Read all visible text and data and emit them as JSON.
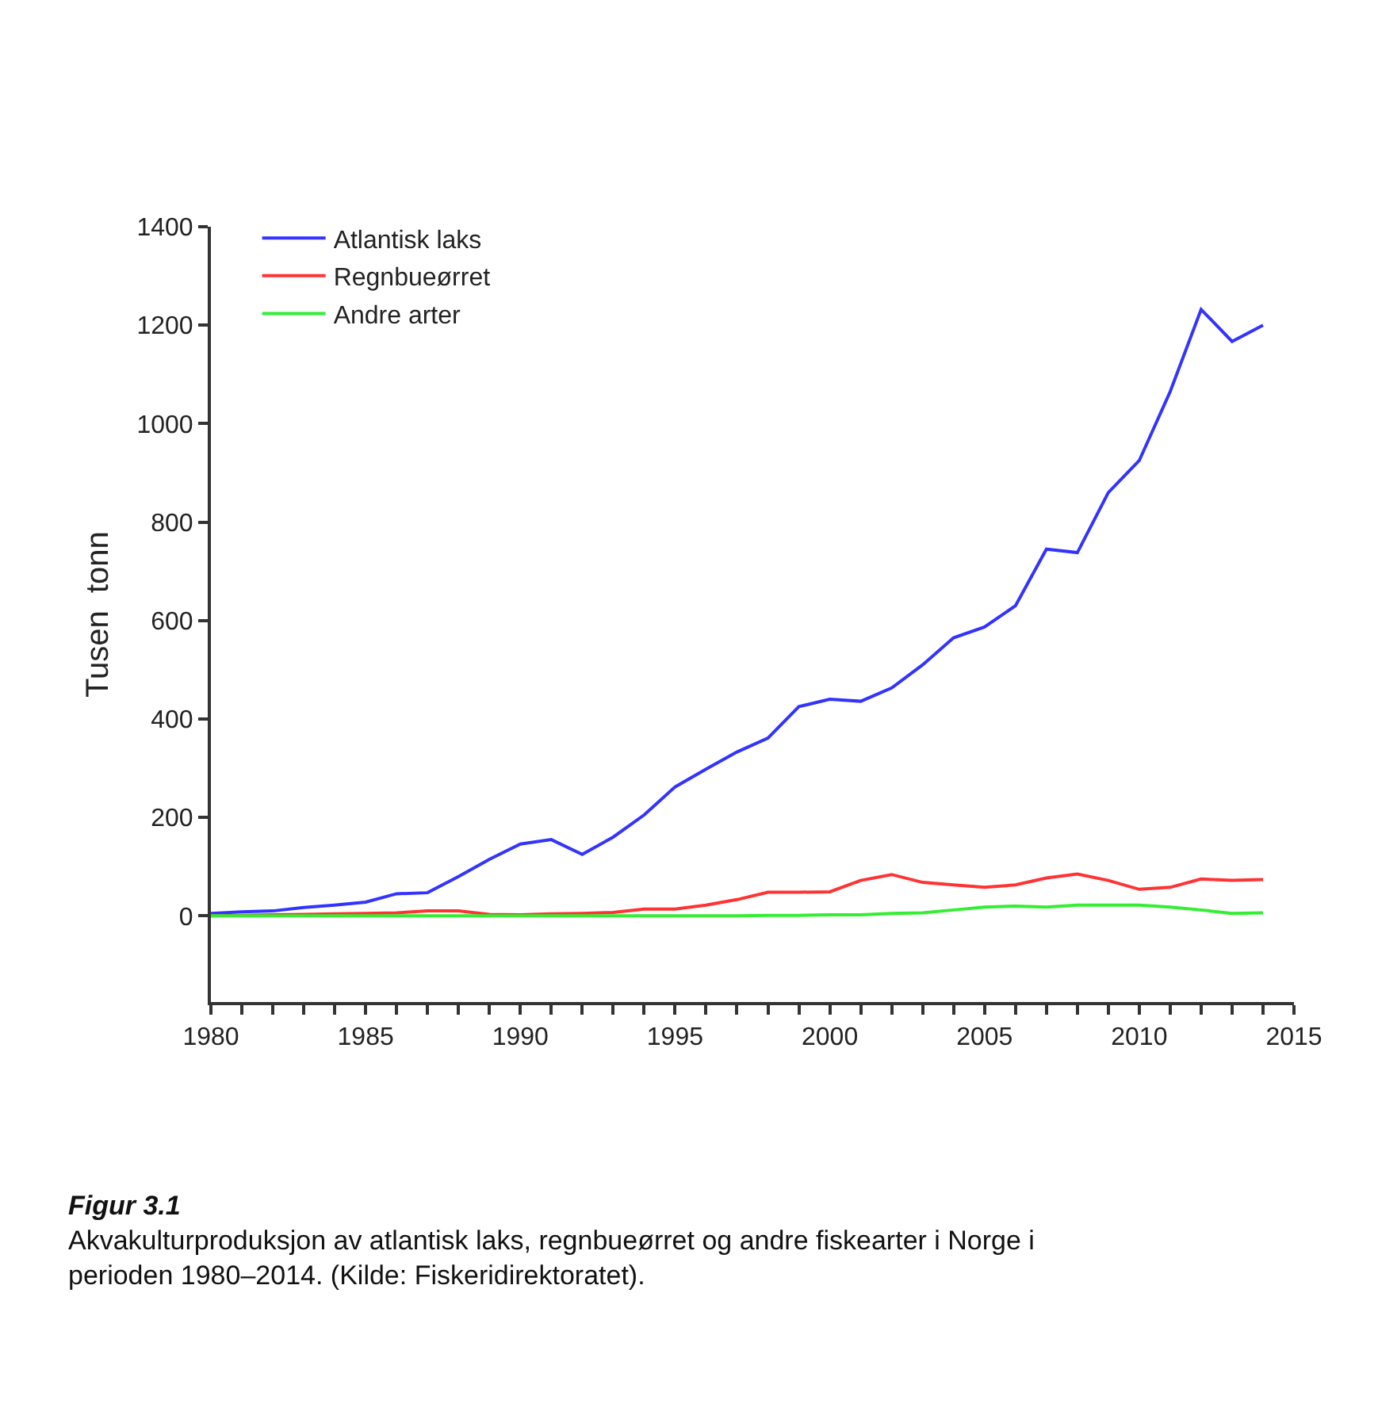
{
  "chart_data": {
    "type": "line",
    "ylabel": "Tusen  tonn",
    "x": [
      1980,
      1981,
      1982,
      1983,
      1984,
      1985,
      1986,
      1987,
      1988,
      1989,
      1990,
      1991,
      1992,
      1993,
      1994,
      1995,
      1996,
      1997,
      1998,
      1999,
      2000,
      2001,
      2002,
      2003,
      2004,
      2005,
      2006,
      2007,
      2008,
      2009,
      2010,
      2011,
      2012,
      2013,
      2014
    ],
    "series": [
      {
        "name": "Atlantisk laks",
        "color": "#3333ff",
        "values": [
          5,
          8,
          10,
          17,
          22,
          28,
          45,
          47,
          80,
          115,
          146,
          155,
          125,
          160,
          205,
          262,
          298,
          333,
          361,
          425,
          440,
          436,
          463,
          510,
          565,
          587,
          630,
          745,
          738,
          860,
          925,
          1065,
          1232,
          1167,
          1200
        ]
      },
      {
        "name": "Regnbueørret",
        "color": "#ff3333",
        "values": [
          0,
          1,
          2,
          3,
          4,
          5,
          6,
          10,
          10,
          3,
          2,
          4,
          5,
          7,
          14,
          14,
          22,
          33,
          48,
          48,
          49,
          72,
          84,
          68,
          63,
          58,
          63,
          77,
          85,
          72,
          54,
          58,
          75,
          72,
          74
        ]
      },
      {
        "name": "Andre arter",
        "color": "#33ee33",
        "values": [
          0,
          0,
          0,
          0,
          0,
          0,
          0,
          0,
          0,
          0,
          0,
          0,
          0,
          0,
          0,
          0,
          0,
          0,
          1,
          1,
          2,
          2,
          5,
          6,
          12,
          18,
          20,
          18,
          22,
          22,
          22,
          18,
          12,
          5,
          6
        ]
      }
    ],
    "xlim": [
      1980,
      2015
    ],
    "xticks": [
      1980,
      {
        "value": 1981,
        "label": null
      },
      {
        "value": 1982,
        "label": null
      },
      {
        "value": 1983,
        "label": null
      },
      {
        "value": 1984,
        "label": null
      },
      1985,
      {
        "value": 1986,
        "label": null
      },
      {
        "value": 1987,
        "label": null
      },
      {
        "value": 1988,
        "label": null
      },
      {
        "value": 1989,
        "label": null
      },
      1990,
      {
        "value": 1991,
        "label": null
      },
      {
        "value": 1992,
        "label": null
      },
      {
        "value": 1993,
        "label": null
      },
      {
        "value": 1994,
        "label": null
      },
      1995,
      {
        "value": 1996,
        "label": null
      },
      {
        "value": 1997,
        "label": null
      },
      {
        "value": 1998,
        "label": null
      },
      {
        "value": 1999,
        "label": null
      },
      2000,
      {
        "value": 2001,
        "label": null
      },
      {
        "value": 2002,
        "label": null
      },
      {
        "value": 2003,
        "label": null
      },
      {
        "value": 2004,
        "label": null
      },
      2005,
      {
        "value": 2006,
        "label": null
      },
      {
        "value": 2007,
        "label": null
      },
      {
        "value": 2008,
        "label": null
      },
      {
        "value": 2009,
        "label": null
      },
      2010,
      {
        "value": 2011,
        "label": null
      },
      {
        "value": 2012,
        "label": null
      },
      {
        "value": 2013,
        "label": null
      },
      {
        "value": 2014,
        "label": null
      },
      2015
    ],
    "ylim": [
      -175,
      1400
    ],
    "yticks": [
      0,
      200,
      400,
      600,
      800,
      1000,
      1200,
      1400
    ],
    "legend": "top left",
    "marker": "none",
    "line_style": "solid",
    "annotations": [
      "Figur 3.1",
      "Akvakulturproduksjon av atlantisk laks, regnbueørret og andre fiskearter i Norge i perioden 1980–2014. (Kilde: Fiskeridirektoratet)."
    ]
  }
}
